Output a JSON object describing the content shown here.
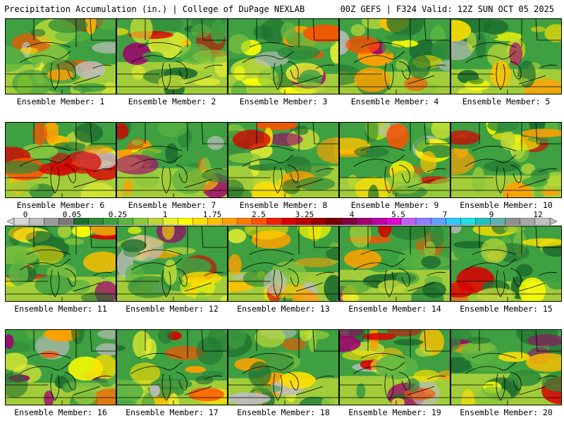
{
  "header": {
    "title_left": "Precipitation Accumulation (in.) | College of DuPage NEXLAB",
    "title_right": "00Z GEFS | F324 Valid: 12Z SUN OCT 05 2025"
  },
  "members": [
    {
      "label": "Ensemble Member: 1"
    },
    {
      "label": "Ensemble Member: 2"
    },
    {
      "label": "Ensemble Member: 3"
    },
    {
      "label": "Ensemble Member: 4"
    },
    {
      "label": "Ensemble Member: 5"
    },
    {
      "label": "Ensemble Member: 6"
    },
    {
      "label": "Ensemble Member: 7"
    },
    {
      "label": "Ensemble Member: 8"
    },
    {
      "label": "Ensemble Member: 9"
    },
    {
      "label": "Ensemble Member: 10"
    },
    {
      "label": "Ensemble Member: 11"
    },
    {
      "label": "Ensemble Member: 12"
    },
    {
      "label": "Ensemble Member: 13"
    },
    {
      "label": "Ensemble Member: 14"
    },
    {
      "label": "Ensemble Member: 15"
    },
    {
      "label": "Ensemble Member: 16"
    },
    {
      "label": "Ensemble Member: 17"
    },
    {
      "label": "Ensemble Member: 18"
    },
    {
      "label": "Ensemble Member: 19"
    },
    {
      "label": "Ensemble Member: 20"
    }
  ],
  "colorbar": {
    "tick_labels": [
      "0",
      "0.05",
      "0.25",
      "1",
      "1.75",
      "2.5",
      "3.25",
      "4",
      "5.5",
      "7",
      "9",
      "12"
    ],
    "colors": [
      "#d6d6d6",
      "#bdbdbd",
      "#9a9a9a",
      "#7a7a7a",
      "#1e6e2e",
      "#2e8a3a",
      "#3ea040",
      "#5cb443",
      "#8cc83c",
      "#bcd838",
      "#e8f030",
      "#ffff00",
      "#ffe000",
      "#ffc000",
      "#ffa000",
      "#ff7a00",
      "#ff5000",
      "#f02000",
      "#d80000",
      "#b80000",
      "#980000",
      "#780000",
      "#800040",
      "#a0006e",
      "#c000a0",
      "#e000d0",
      "#c060f0",
      "#9080ff",
      "#60a0ff",
      "#30c8ff",
      "#20e0e0",
      "#20c0c0",
      "#60b0b0",
      "#909090",
      "#a8a8a8",
      "#c0c0c0"
    ]
  }
}
